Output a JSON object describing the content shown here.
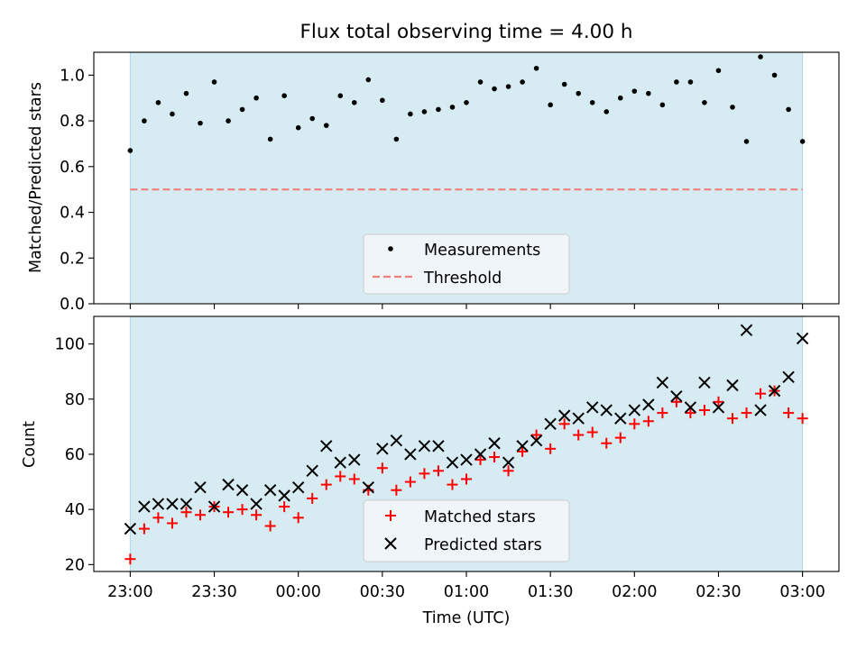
{
  "chart_data": [
    {
      "type": "scatter",
      "title": "Flux total observing time = 4.00 h",
      "xlabel": "",
      "ylabel": "Matched/Predicted stars",
      "ylim": [
        0,
        1.1
      ],
      "yticks": [
        "0.0",
        "0.2",
        "0.4",
        "0.6",
        "0.8",
        "1.0"
      ],
      "x_unit": "minutes after 23:00 UTC",
      "shaded_span": [
        0,
        240
      ],
      "shade_color": "#add8e6",
      "legend_position": "lower center",
      "series": [
        {
          "name": "Measurements",
          "marker": "dot",
          "color": "#000000",
          "x": [
            0,
            5,
            10,
            15,
            20,
            25,
            30,
            35,
            40,
            45,
            50,
            55,
            60,
            65,
            70,
            75,
            80,
            85,
            90,
            95,
            100,
            105,
            110,
            115,
            120,
            125,
            130,
            135,
            140,
            145,
            150,
            155,
            160,
            165,
            170,
            175,
            180,
            185,
            190,
            195,
            200,
            205,
            210,
            215,
            220,
            225,
            230,
            235,
            240
          ],
          "values": [
            0.67,
            0.8,
            0.88,
            0.83,
            0.92,
            0.79,
            0.97,
            0.8,
            0.85,
            0.9,
            0.72,
            0.91,
            0.77,
            0.81,
            0.78,
            0.91,
            0.88,
            0.98,
            0.89,
            0.72,
            0.83,
            0.84,
            0.85,
            0.86,
            0.88,
            0.97,
            0.94,
            0.95,
            0.97,
            1.03,
            0.87,
            0.96,
            0.92,
            0.88,
            0.84,
            0.9,
            0.93,
            0.92,
            0.87,
            0.97,
            0.97,
            0.88,
            1.02,
            0.86,
            0.71,
            1.08,
            1.0,
            0.85,
            0.71
          ]
        },
        {
          "name": "Threshold",
          "style": "dashed",
          "color": "#f08080",
          "x": [
            0,
            240
          ],
          "values": [
            0.5,
            0.5
          ]
        }
      ]
    },
    {
      "type": "scatter",
      "title": "",
      "xlabel": "Time (UTC)",
      "ylabel": "Count",
      "ylim": [
        17.5,
        110
      ],
      "yticks": [
        "20",
        "40",
        "60",
        "80",
        "100"
      ],
      "x_unit": "minutes after 23:00 UTC",
      "xlim": [
        -13,
        253
      ],
      "xticks": [
        "23:00",
        "23:30",
        "00:00",
        "00:30",
        "01:00",
        "01:30",
        "02:00",
        "02:30",
        "03:00"
      ],
      "shaded_span": [
        0,
        240
      ],
      "shade_color": "#add8e6",
      "legend_position": "lower center",
      "series": [
        {
          "name": "Matched stars",
          "marker": "plus",
          "color": "#ff0000",
          "x": [
            0,
            5,
            10,
            15,
            20,
            25,
            30,
            35,
            40,
            45,
            50,
            55,
            60,
            65,
            70,
            75,
            80,
            85,
            90,
            95,
            100,
            105,
            110,
            115,
            120,
            125,
            130,
            135,
            140,
            145,
            150,
            155,
            160,
            165,
            170,
            175,
            180,
            185,
            190,
            195,
            200,
            205,
            210,
            215,
            220,
            225,
            230,
            235,
            240
          ],
          "values": [
            22,
            33,
            37,
            35,
            39,
            38,
            41,
            39,
            40,
            38,
            34,
            41,
            37,
            44,
            49,
            52,
            51,
            47,
            55,
            47,
            50,
            53,
            54,
            49,
            51,
            58,
            59,
            54,
            61,
            67,
            62,
            71,
            67,
            68,
            64,
            66,
            71,
            72,
            75,
            79,
            75,
            76,
            79,
            73,
            75,
            82,
            83,
            75,
            73
          ]
        },
        {
          "name": "Predicted stars",
          "marker": "x",
          "color": "#000000",
          "x": [
            0,
            5,
            10,
            15,
            20,
            25,
            30,
            35,
            40,
            45,
            50,
            55,
            60,
            65,
            70,
            75,
            80,
            85,
            90,
            95,
            100,
            105,
            110,
            115,
            120,
            125,
            130,
            135,
            140,
            145,
            150,
            155,
            160,
            165,
            170,
            175,
            180,
            185,
            190,
            195,
            200,
            205,
            210,
            215,
            220,
            225,
            230,
            235,
            240
          ],
          "values": [
            33,
            41,
            42,
            42,
            42,
            48,
            41,
            49,
            47,
            42,
            47,
            45,
            48,
            54,
            63,
            57,
            58,
            48,
            62,
            65,
            60,
            63,
            63,
            57,
            58,
            60,
            64,
            57,
            63,
            65,
            71,
            74,
            73,
            77,
            76,
            73,
            76,
            78,
            86,
            81,
            77,
            86,
            77,
            85,
            105,
            76,
            83,
            88,
            102
          ]
        }
      ]
    }
  ]
}
